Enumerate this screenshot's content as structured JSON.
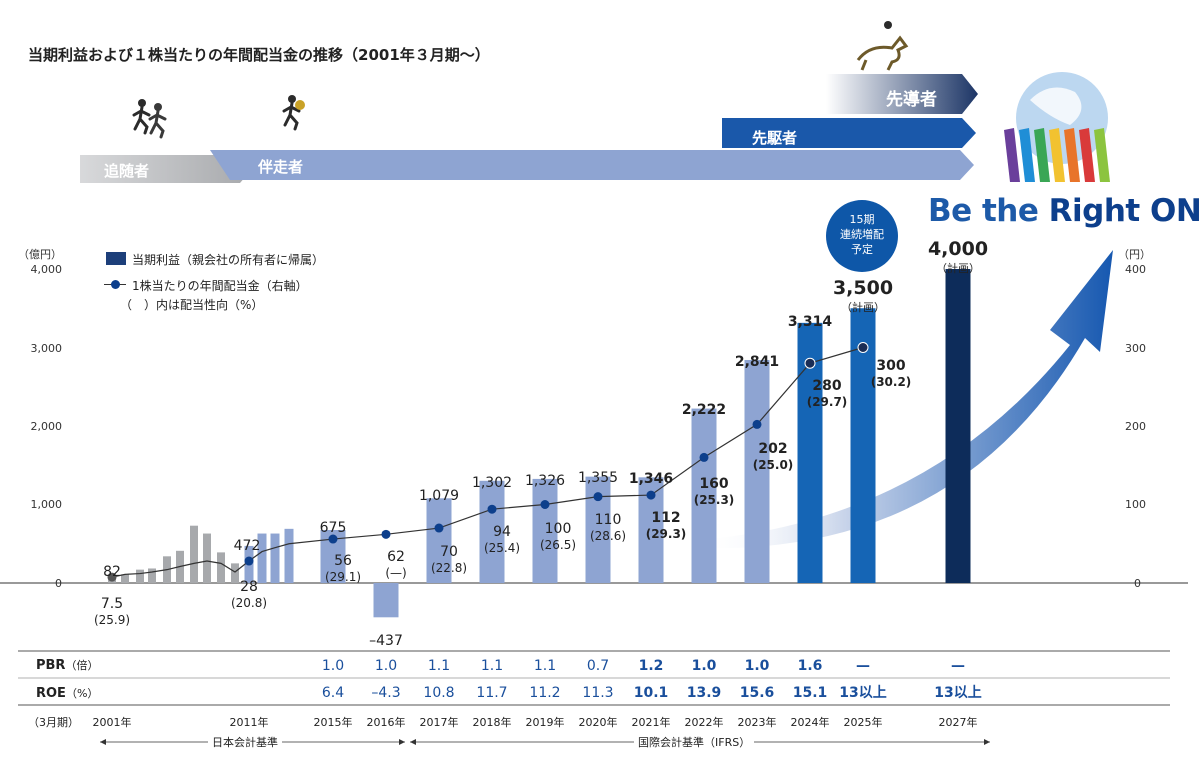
{
  "page": {
    "title": "当期利益および１株当たりの年間配当金の推移（2001年３月期～）",
    "logo": {
      "part1": "Be the ",
      "part2": "Right ONE"
    },
    "badge": [
      "15期",
      "連続増配",
      "予定"
    ],
    "colors": {
      "navy": "#0d2c5a",
      "blue": "#1565b5",
      "light_blue": "#8ea4d2",
      "gray": "#a7a9ac",
      "text_blue": "#1a4f9c"
    }
  },
  "stages": [
    {
      "label": "追随者"
    },
    {
      "label": "伴走者"
    },
    {
      "label": "先駆者"
    },
    {
      "label": "先導者"
    }
  ],
  "legend": {
    "bar": "当期利益（親会社の所有者に帰属）",
    "line": "1株当たりの年間配当金（右軸）",
    "line_note": "（　）内は配当性向（%）"
  },
  "axes": {
    "left_unit": "（億円）",
    "right_unit": "（円）",
    "left_ticks": [
      "4,000",
      "3,000",
      "2,000",
      "1,000",
      "0"
    ],
    "right_ticks": [
      "400",
      "300",
      "200",
      "100",
      "0"
    ]
  },
  "chart_data": {
    "type": "bar",
    "title": "当期利益および１株当たりの年間配当金の推移（2001年３月期～）",
    "ylabel": "（億円）",
    "y2label": "（円）",
    "ylim": [
      -500,
      4000
    ],
    "y2lim": [
      -50,
      400
    ],
    "bars": [
      {
        "period": 2001,
        "value": 82,
        "style": "gray",
        "label": "82"
      },
      {
        "period": 2002,
        "value": 110,
        "style": "gray"
      },
      {
        "period": 2003,
        "value": 170,
        "style": "gray"
      },
      {
        "period": 2004,
        "value": 185,
        "style": "gray"
      },
      {
        "period": 2005,
        "value": 340,
        "style": "gray"
      },
      {
        "period": 2006,
        "value": 410,
        "style": "gray"
      },
      {
        "period": 2007,
        "value": 730,
        "style": "gray"
      },
      {
        "period": 2008,
        "value": 630,
        "style": "gray"
      },
      {
        "period": 2009,
        "value": 390,
        "style": "gray"
      },
      {
        "period": 2010,
        "value": 250,
        "style": "gray"
      },
      {
        "period": 2011,
        "value": 472,
        "style": "light",
        "label": "472"
      },
      {
        "period": 2012,
        "value": 630,
        "style": "light"
      },
      {
        "period": 2013,
        "value": 630,
        "style": "light"
      },
      {
        "period": 2014,
        "value": 690,
        "style": "light"
      },
      {
        "period": 2015,
        "value": 675,
        "style": "light",
        "label": "675"
      },
      {
        "period": 2016,
        "value": -437,
        "style": "light",
        "label": "–437"
      },
      {
        "period": 2017,
        "value": 1079,
        "style": "light",
        "label": "1,079"
      },
      {
        "period": 2018,
        "value": 1302,
        "style": "light",
        "label": "1,302"
      },
      {
        "period": 2019,
        "value": 1326,
        "style": "light",
        "label": "1,326"
      },
      {
        "period": 2020,
        "value": 1355,
        "style": "light",
        "label": "1,355"
      },
      {
        "period": 2021,
        "value": 1346,
        "style": "light",
        "label": "1,346"
      },
      {
        "period": 2022,
        "value": 2222,
        "style": "light",
        "label": "2,222"
      },
      {
        "period": 2023,
        "value": 2841,
        "style": "light",
        "label": "2,841"
      },
      {
        "period": 2024,
        "value": 3314,
        "style": "blue",
        "label": "3,314"
      },
      {
        "period": 2025,
        "value": 3500,
        "style": "blue",
        "label": "3,500",
        "sub": "（計画）"
      },
      {
        "period": 2027,
        "value": 4000,
        "style": "navy",
        "label": "4,000",
        "sub": "（計画）"
      }
    ],
    "dividends": [
      {
        "period": 2001,
        "value": 7.5,
        "label": "7.5",
        "payout": "(25.9)"
      },
      {
        "period": 2002,
        "value": 11
      },
      {
        "period": 2003,
        "value": 12
      },
      {
        "period": 2004,
        "value": 14
      },
      {
        "period": 2005,
        "value": 17
      },
      {
        "period": 2006,
        "value": 21
      },
      {
        "period": 2007,
        "value": 25
      },
      {
        "period": 2008,
        "value": 28
      },
      {
        "period": 2009,
        "value": 25
      },
      {
        "period": 2010,
        "value": 14
      },
      {
        "period": 2011,
        "value": 28,
        "label": "28",
        "payout": "(20.8)"
      },
      {
        "period": 2012,
        "value": 40
      },
      {
        "period": 2013,
        "value": 45
      },
      {
        "period": 2014,
        "value": 50
      },
      {
        "period": 2015,
        "value": 56,
        "label": "56",
        "payout": "(29.1)"
      },
      {
        "period": 2016,
        "value": 62,
        "label": "62",
        "payout": "(—)"
      },
      {
        "period": 2017,
        "value": 70,
        "label": "70",
        "payout": "(22.8)"
      },
      {
        "period": 2018,
        "value": 94,
        "label": "94",
        "payout": "(25.4)"
      },
      {
        "period": 2019,
        "value": 100,
        "label": "100",
        "payout": "(26.5)"
      },
      {
        "period": 2020,
        "value": 110,
        "label": "110",
        "payout": "(28.6)"
      },
      {
        "period": 2021,
        "value": 112,
        "label": "112",
        "payout": "(29.3)"
      },
      {
        "period": 2022,
        "value": 160,
        "label": "160",
        "payout": "(25.3)"
      },
      {
        "period": 2023,
        "value": 202,
        "label": "202",
        "payout": "(25.0)"
      },
      {
        "period": 2024,
        "value": 280,
        "label": "280",
        "payout": "(29.7)"
      },
      {
        "period": 2025,
        "value": 300,
        "label": "300",
        "payout": "(30.2)"
      }
    ],
    "metrics": {
      "pbr_label": "PBR",
      "pbr_unit": "（倍）",
      "roe_label": "ROE",
      "roe_unit": "（%）",
      "columns": [
        {
          "period": 2015,
          "pbr": "1.0",
          "roe": "6.4"
        },
        {
          "period": 2016,
          "pbr": "1.0",
          "roe": "–4.3"
        },
        {
          "period": 2017,
          "pbr": "1.1",
          "roe": "10.8"
        },
        {
          "period": 2018,
          "pbr": "1.1",
          "roe": "11.7"
        },
        {
          "period": 2019,
          "pbr": "1.1",
          "roe": "11.2"
        },
        {
          "period": 2020,
          "pbr": "0.7",
          "roe": "11.3"
        },
        {
          "period": 2021,
          "pbr": "1.2",
          "roe": "10.1"
        },
        {
          "period": 2022,
          "pbr": "1.0",
          "roe": "13.9"
        },
        {
          "period": 2023,
          "pbr": "1.0",
          "roe": "15.6"
        },
        {
          "period": 2024,
          "pbr": "1.6",
          "roe": "15.1"
        },
        {
          "period": 2025,
          "pbr": "—",
          "roe": "13以上"
        },
        {
          "period": 2027,
          "pbr": "—",
          "roe": "13以上"
        }
      ]
    },
    "x_axis_note": "（3月期）",
    "years": [
      {
        "period": 2001,
        "label": "2001年"
      },
      {
        "period": 2011,
        "label": "2011年"
      },
      {
        "period": 2015,
        "label": "2015年"
      },
      {
        "period": 2016,
        "label": "2016年"
      },
      {
        "period": 2017,
        "label": "2017年"
      },
      {
        "period": 2018,
        "label": "2018年"
      },
      {
        "period": 2019,
        "label": "2019年"
      },
      {
        "period": 2020,
        "label": "2020年"
      },
      {
        "period": 2021,
        "label": "2021年"
      },
      {
        "period": 2022,
        "label": "2022年"
      },
      {
        "period": 2023,
        "label": "2023年"
      },
      {
        "period": 2024,
        "label": "2024年"
      },
      {
        "period": 2025,
        "label": "2025年"
      },
      {
        "period": 2027,
        "label": "2027年"
      }
    ],
    "eras": [
      "日本会計基準",
      "国際会計基準（IFRS）"
    ]
  }
}
